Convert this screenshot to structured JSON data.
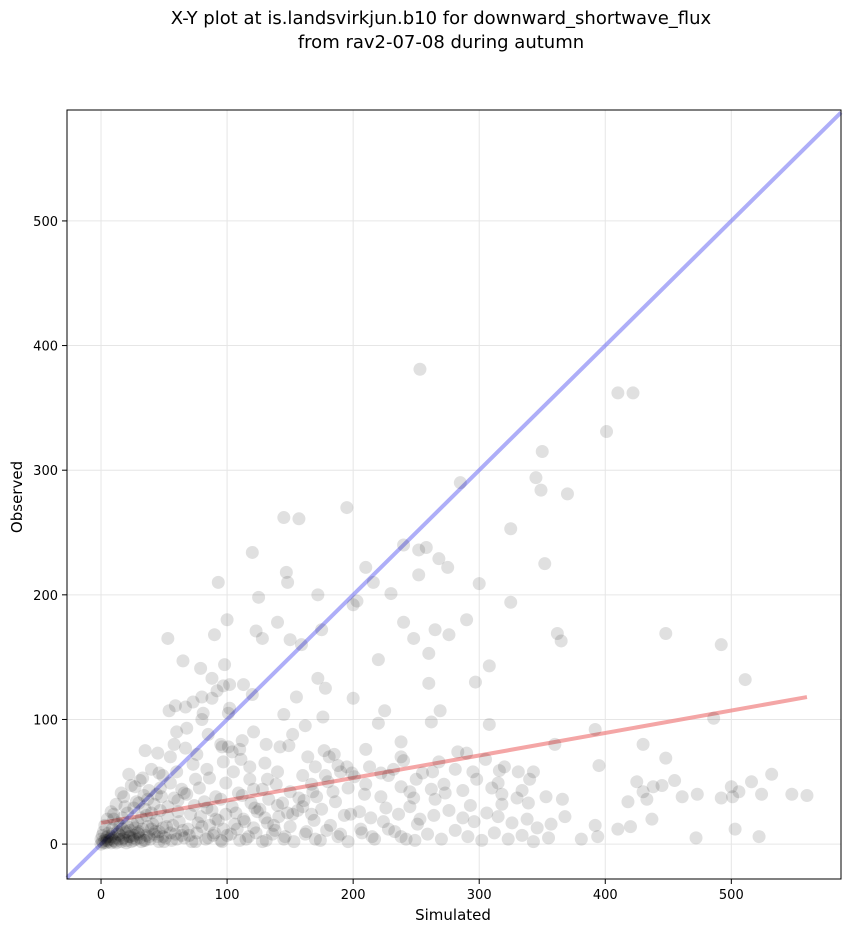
{
  "chart_data": {
    "type": "scatter",
    "title": "X-Y plot at is.landsvirkjun.b10 for downward_shortwave_flux",
    "subtitle": "from rav2-07-08 during autumn",
    "xlabel": "Simulated",
    "ylabel": "Observed",
    "xlim": [
      -27,
      587
    ],
    "ylim": [
      -28,
      589
    ],
    "xticks": [
      0,
      100,
      200,
      300,
      400,
      500
    ],
    "yticks": [
      0,
      100,
      200,
      300,
      400,
      500
    ],
    "grid": true,
    "colors": {
      "points": "#000000",
      "identity_line": "#6b6bf2",
      "fit_line": "#f08080",
      "grid": "#e6e6e6"
    },
    "identity_line": {
      "x": [
        -27,
        587
      ],
      "y": [
        -27,
        587
      ]
    },
    "fit_line": {
      "x": [
        0,
        560
      ],
      "y": [
        17,
        118
      ]
    },
    "points": [
      [
        253,
        381
      ],
      [
        410,
        362
      ],
      [
        422,
        362
      ],
      [
        401,
        331
      ],
      [
        350,
        315
      ],
      [
        345,
        294
      ],
      [
        349,
        284
      ],
      [
        370,
        281
      ],
      [
        285,
        290
      ],
      [
        195,
        270
      ],
      [
        145,
        262
      ],
      [
        157,
        261
      ],
      [
        325,
        253
      ],
      [
        240,
        240
      ],
      [
        258,
        238
      ],
      [
        252,
        236
      ],
      [
        120,
        234
      ],
      [
        268,
        229
      ],
      [
        275,
        222
      ],
      [
        210,
        222
      ],
      [
        352,
        225
      ],
      [
        147,
        218
      ],
      [
        252,
        216
      ],
      [
        93,
        210
      ],
      [
        300,
        209
      ],
      [
        148,
        210
      ],
      [
        216,
        210
      ],
      [
        230,
        201
      ],
      [
        172,
        200
      ],
      [
        125,
        198
      ],
      [
        203,
        195
      ],
      [
        200,
        192
      ],
      [
        325,
        194
      ],
      [
        100,
        180
      ],
      [
        290,
        180
      ],
      [
        240,
        178
      ],
      [
        140,
        178
      ],
      [
        265,
        172
      ],
      [
        276,
        168
      ],
      [
        175,
        172
      ],
      [
        123,
        171
      ],
      [
        362,
        169
      ],
      [
        448,
        169
      ],
      [
        53,
        165
      ],
      [
        90,
        168
      ],
      [
        128,
        165
      ],
      [
        150,
        164
      ],
      [
        248,
        165
      ],
      [
        159,
        160
      ],
      [
        492,
        160
      ],
      [
        365,
        163
      ],
      [
        260,
        153
      ],
      [
        220,
        148
      ],
      [
        65,
        147
      ],
      [
        308,
        143
      ],
      [
        79,
        141
      ],
      [
        98,
        144
      ],
      [
        511,
        132
      ],
      [
        172,
        133
      ],
      [
        88,
        133
      ],
      [
        297,
        130
      ],
      [
        260,
        129
      ],
      [
        102,
        128
      ],
      [
        113,
        128
      ],
      [
        178,
        125
      ],
      [
        92,
        123
      ],
      [
        80,
        118
      ],
      [
        120,
        120
      ],
      [
        155,
        118
      ],
      [
        200,
        117
      ],
      [
        73,
        114
      ],
      [
        59,
        111
      ],
      [
        67,
        110
      ],
      [
        102,
        109
      ],
      [
        101,
        105
      ],
      [
        145,
        104
      ],
      [
        225,
        107
      ],
      [
        269,
        107
      ],
      [
        54,
        107
      ],
      [
        176,
        102
      ],
      [
        80,
        100
      ],
      [
        220,
        97
      ],
      [
        262,
        98
      ],
      [
        308,
        96
      ],
      [
        486,
        101
      ],
      [
        392,
        92
      ],
      [
        60,
        90
      ],
      [
        85,
        88
      ],
      [
        121,
        90
      ],
      [
        142,
        78
      ],
      [
        177,
        75
      ],
      [
        185,
        72
      ],
      [
        238,
        82
      ],
      [
        95,
        80
      ],
      [
        101,
        78
      ],
      [
        67,
        77
      ],
      [
        35,
        75
      ],
      [
        45,
        73
      ],
      [
        58,
        80
      ],
      [
        110,
        76
      ],
      [
        149,
        79
      ],
      [
        283,
        74
      ],
      [
        290,
        73
      ],
      [
        240,
        67
      ],
      [
        268,
        66
      ],
      [
        305,
        68
      ],
      [
        320,
        62
      ],
      [
        360,
        80
      ],
      [
        430,
        80
      ],
      [
        448,
        69
      ],
      [
        395,
        63
      ],
      [
        195,
        62
      ],
      [
        213,
        62
      ],
      [
        199,
        57
      ],
      [
        222,
        57
      ],
      [
        255,
        57
      ],
      [
        263,
        58
      ],
      [
        295,
        58
      ],
      [
        316,
        59
      ],
      [
        298,
        52
      ],
      [
        315,
        49
      ],
      [
        340,
        52
      ],
      [
        343,
        58
      ],
      [
        425,
        50
      ],
      [
        455,
        51
      ],
      [
        473,
        40
      ],
      [
        500,
        46
      ],
      [
        516,
        50
      ],
      [
        532,
        56
      ],
      [
        548,
        40
      ],
      [
        560,
        39
      ],
      [
        501,
        38
      ],
      [
        524,
        40
      ],
      [
        506,
        42
      ],
      [
        492,
        37
      ],
      [
        418,
        34
      ],
      [
        433,
        36
      ],
      [
        461,
        38
      ],
      [
        445,
        47
      ],
      [
        438,
        46
      ],
      [
        430,
        42
      ],
      [
        366,
        36
      ],
      [
        339,
        33
      ],
      [
        330,
        37
      ],
      [
        318,
        32
      ],
      [
        293,
        31
      ],
      [
        265,
        36
      ],
      [
        245,
        42
      ],
      [
        222,
        38
      ],
      [
        196,
        45
      ],
      [
        180,
        50
      ],
      [
        171,
        38
      ],
      [
        157,
        37
      ],
      [
        150,
        42
      ],
      [
        139,
        48
      ],
      [
        128,
        44
      ],
      [
        118,
        52
      ],
      [
        105,
        58
      ],
      [
        99,
        49
      ],
      [
        86,
        53
      ],
      [
        75,
        52
      ],
      [
        64,
        44
      ],
      [
        55,
        49
      ],
      [
        47,
        45
      ],
      [
        38,
        43
      ],
      [
        31,
        51
      ],
      [
        22,
        56
      ],
      [
        18,
        38
      ],
      [
        12,
        32
      ],
      [
        8,
        26
      ],
      [
        5,
        20
      ],
      [
        3,
        15
      ],
      [
        2,
        10
      ],
      [
        1,
        7
      ],
      [
        0,
        4
      ],
      [
        1,
        2
      ],
      [
        0,
        0
      ],
      [
        4,
        5
      ],
      [
        6,
        9
      ],
      [
        9,
        12
      ],
      [
        13,
        17
      ],
      [
        17,
        21
      ],
      [
        21,
        25
      ],
      [
        26,
        29
      ],
      [
        30,
        33
      ],
      [
        35,
        28
      ],
      [
        42,
        32
      ],
      [
        48,
        38
      ],
      [
        53,
        30
      ],
      [
        61,
        35
      ],
      [
        68,
        40
      ],
      [
        74,
        31
      ],
      [
        82,
        34
      ],
      [
        88,
        27
      ],
      [
        95,
        36
      ],
      [
        104,
        30
      ],
      [
        112,
        39
      ],
      [
        119,
        33
      ],
      [
        126,
        28
      ],
      [
        133,
        36
      ],
      [
        140,
        31
      ],
      [
        148,
        25
      ],
      [
        160,
        30
      ],
      [
        167,
        24
      ],
      [
        175,
        28
      ],
      [
        186,
        34
      ],
      [
        193,
        23
      ],
      [
        205,
        26
      ],
      [
        214,
        21
      ],
      [
        226,
        29
      ],
      [
        236,
        24
      ],
      [
        245,
        30
      ],
      [
        253,
        20
      ],
      [
        264,
        23
      ],
      [
        276,
        27
      ],
      [
        287,
        21
      ],
      [
        296,
        18
      ],
      [
        306,
        25
      ],
      [
        315,
        22
      ],
      [
        326,
        17
      ],
      [
        338,
        20
      ],
      [
        346,
        13
      ],
      [
        357,
        16
      ],
      [
        368,
        22
      ],
      [
        381,
        4
      ],
      [
        392,
        15
      ],
      [
        394,
        6
      ],
      [
        410,
        12
      ],
      [
        420,
        14
      ],
      [
        437,
        20
      ],
      [
        472,
        5
      ],
      [
        503,
        12
      ],
      [
        522,
        6
      ],
      [
        10,
        20
      ],
      [
        15,
        15
      ],
      [
        20,
        10
      ],
      [
        25,
        5
      ],
      [
        30,
        8
      ],
      [
        35,
        3
      ],
      [
        40,
        12
      ],
      [
        45,
        6
      ],
      [
        50,
        2
      ],
      [
        55,
        9
      ],
      [
        60,
        4
      ],
      [
        65,
        11
      ],
      [
        70,
        7
      ],
      [
        75,
        2
      ],
      [
        80,
        14
      ],
      [
        85,
        5
      ],
      [
        90,
        9
      ],
      [
        95,
        3
      ],
      [
        100,
        7
      ],
      [
        108,
        12
      ],
      [
        115,
        4
      ],
      [
        123,
        9
      ],
      [
        131,
        3
      ],
      [
        138,
        11
      ],
      [
        146,
        6
      ],
      [
        153,
        2
      ],
      [
        162,
        8
      ],
      [
        170,
        4
      ],
      [
        179,
        11
      ],
      [
        188,
        6
      ],
      [
        196,
        2
      ],
      [
        207,
        9
      ],
      [
        217,
        4
      ],
      [
        228,
        12
      ],
      [
        238,
        6
      ],
      [
        249,
        3
      ],
      [
        259,
        8
      ],
      [
        270,
        4
      ],
      [
        281,
        11
      ],
      [
        291,
        6
      ],
      [
        302,
        3
      ],
      [
        312,
        9
      ],
      [
        323,
        4
      ],
      [
        334,
        7
      ],
      [
        343,
        2
      ],
      [
        355,
        5
      ],
      [
        5,
        3
      ],
      [
        8,
        6
      ],
      [
        11,
        2
      ],
      [
        14,
        8
      ],
      [
        17,
        4
      ],
      [
        20,
        1
      ],
      [
        23,
        6
      ],
      [
        26,
        3
      ],
      [
        29,
        9
      ],
      [
        32,
        2
      ],
      [
        36,
        7
      ],
      [
        39,
        4
      ],
      [
        43,
        10
      ],
      [
        46,
        2
      ],
      [
        49,
        6
      ],
      [
        52,
        14
      ],
      [
        56,
        3
      ],
      [
        59,
        8
      ],
      [
        62,
        18
      ],
      [
        66,
        5
      ],
      [
        69,
        12
      ],
      [
        72,
        2
      ],
      [
        76,
        9
      ],
      [
        79,
        22
      ],
      [
        83,
        4
      ],
      [
        86,
        15
      ],
      [
        89,
        7
      ],
      [
        93,
        19
      ],
      [
        96,
        2
      ],
      [
        99,
        24
      ],
      [
        103,
        8
      ],
      [
        106,
        16
      ],
      [
        110,
        3
      ],
      [
        113,
        20
      ],
      [
        117,
        6
      ],
      [
        121,
        13
      ],
      [
        124,
        26
      ],
      [
        128,
        2
      ],
      [
        132,
        17
      ],
      [
        136,
        8
      ],
      [
        141,
        22
      ],
      [
        145,
        4
      ],
      [
        150,
        14
      ],
      [
        156,
        27
      ],
      [
        163,
        10
      ],
      [
        169,
        19
      ],
      [
        174,
        3
      ],
      [
        182,
        15
      ],
      [
        190,
        8
      ],
      [
        198,
        24
      ],
      [
        206,
        12
      ],
      [
        215,
        6
      ],
      [
        224,
        18
      ],
      [
        233,
        10
      ],
      [
        242,
        4
      ],
      [
        251,
        16
      ],
      [
        2,
        1
      ],
      [
        3,
        3
      ],
      [
        4,
        1
      ],
      [
        5,
        6
      ],
      [
        6,
        2
      ],
      [
        7,
        4
      ],
      [
        8,
        1
      ],
      [
        9,
        8
      ],
      [
        10,
        3
      ],
      [
        11,
        5
      ],
      [
        12,
        1
      ],
      [
        13,
        10
      ],
      [
        14,
        4
      ],
      [
        15,
        7
      ],
      [
        16,
        2
      ],
      [
        17,
        12
      ],
      [
        18,
        5
      ],
      [
        19,
        9
      ],
      [
        20,
        3
      ],
      [
        21,
        14
      ],
      [
        22,
        6
      ],
      [
        23,
        11
      ],
      [
        24,
        2
      ],
      [
        25,
        16
      ],
      [
        26,
        7
      ],
      [
        27,
        13
      ],
      [
        28,
        4
      ],
      [
        29,
        18
      ],
      [
        30,
        10
      ],
      [
        31,
        5
      ],
      [
        32,
        21
      ],
      [
        33,
        12
      ],
      [
        34,
        3
      ],
      [
        36,
        23
      ],
      [
        37,
        14
      ],
      [
        38,
        6
      ],
      [
        40,
        25
      ],
      [
        41,
        16
      ],
      [
        42,
        8
      ],
      [
        44,
        19
      ],
      [
        46,
        10
      ],
      [
        47,
        27
      ],
      [
        49,
        13
      ],
      [
        51,
        5
      ],
      [
        53,
        22
      ],
      [
        57,
        15
      ],
      [
        61,
        26
      ],
      [
        64,
        7
      ],
      [
        71,
        24
      ],
      [
        77,
        17
      ],
      [
        84,
        29
      ],
      [
        91,
        20
      ],
      [
        97,
        12
      ],
      [
        107,
        25
      ],
      [
        114,
        18
      ],
      [
        122,
        29
      ],
      [
        130,
        21
      ],
      [
        137,
        15
      ],
      [
        144,
        33
      ],
      [
        152,
        24
      ],
      [
        161,
        35
      ],
      [
        168,
        42
      ],
      [
        178,
        55
      ],
      [
        188,
        63
      ],
      [
        190,
        58
      ],
      [
        201,
        54
      ],
      [
        210,
        48
      ],
      [
        232,
        60
      ],
      [
        250,
        52
      ],
      [
        272,
        48
      ],
      [
        130,
        65
      ],
      [
        118,
        62
      ],
      [
        111,
        68
      ],
      [
        97,
        66
      ],
      [
        84,
        60
      ],
      [
        73,
        64
      ],
      [
        60,
        58
      ],
      [
        49,
        55
      ],
      [
        40,
        60
      ],
      [
        33,
        53
      ],
      [
        27,
        46
      ],
      [
        140,
        58
      ],
      [
        160,
        55
      ],
      [
        170,
        62
      ],
      [
        181,
        70
      ],
      [
        228,
        55
      ],
      [
        281,
        60
      ],
      [
        331,
        58
      ],
      [
        334,
        43
      ],
      [
        353,
        38
      ],
      [
        287,
        43
      ],
      [
        310,
        45
      ],
      [
        318,
        40
      ],
      [
        273,
        41
      ],
      [
        262,
        44
      ],
      [
        248,
        37
      ],
      [
        238,
        46
      ],
      [
        209,
        40
      ],
      [
        184,
        42
      ],
      [
        167,
        48
      ],
      [
        132,
        52
      ],
      [
        121,
        44
      ],
      [
        109,
        41
      ],
      [
        91,
        38
      ],
      [
        78,
        45
      ],
      [
        66,
        41
      ],
      [
        58,
        37
      ],
      [
        44,
        40
      ],
      [
        37,
        36
      ],
      [
        28,
        34
      ],
      [
        19,
        30
      ],
      [
        10,
        24
      ],
      [
        96,
        78
      ],
      [
        104,
        74
      ],
      [
        112,
        83
      ],
      [
        131,
        80
      ],
      [
        164,
        70
      ],
      [
        210,
        76
      ],
      [
        238,
        70
      ],
      [
        152,
        88
      ],
      [
        162,
        95
      ],
      [
        76,
        72
      ],
      [
        16,
        41
      ],
      [
        24,
        47
      ],
      [
        34,
        39
      ],
      [
        46,
        57
      ],
      [
        55,
        70
      ],
      [
        68,
        93
      ],
      [
        81,
        105
      ],
      [
        88,
        117
      ],
      [
        97,
        127
      ]
    ]
  }
}
